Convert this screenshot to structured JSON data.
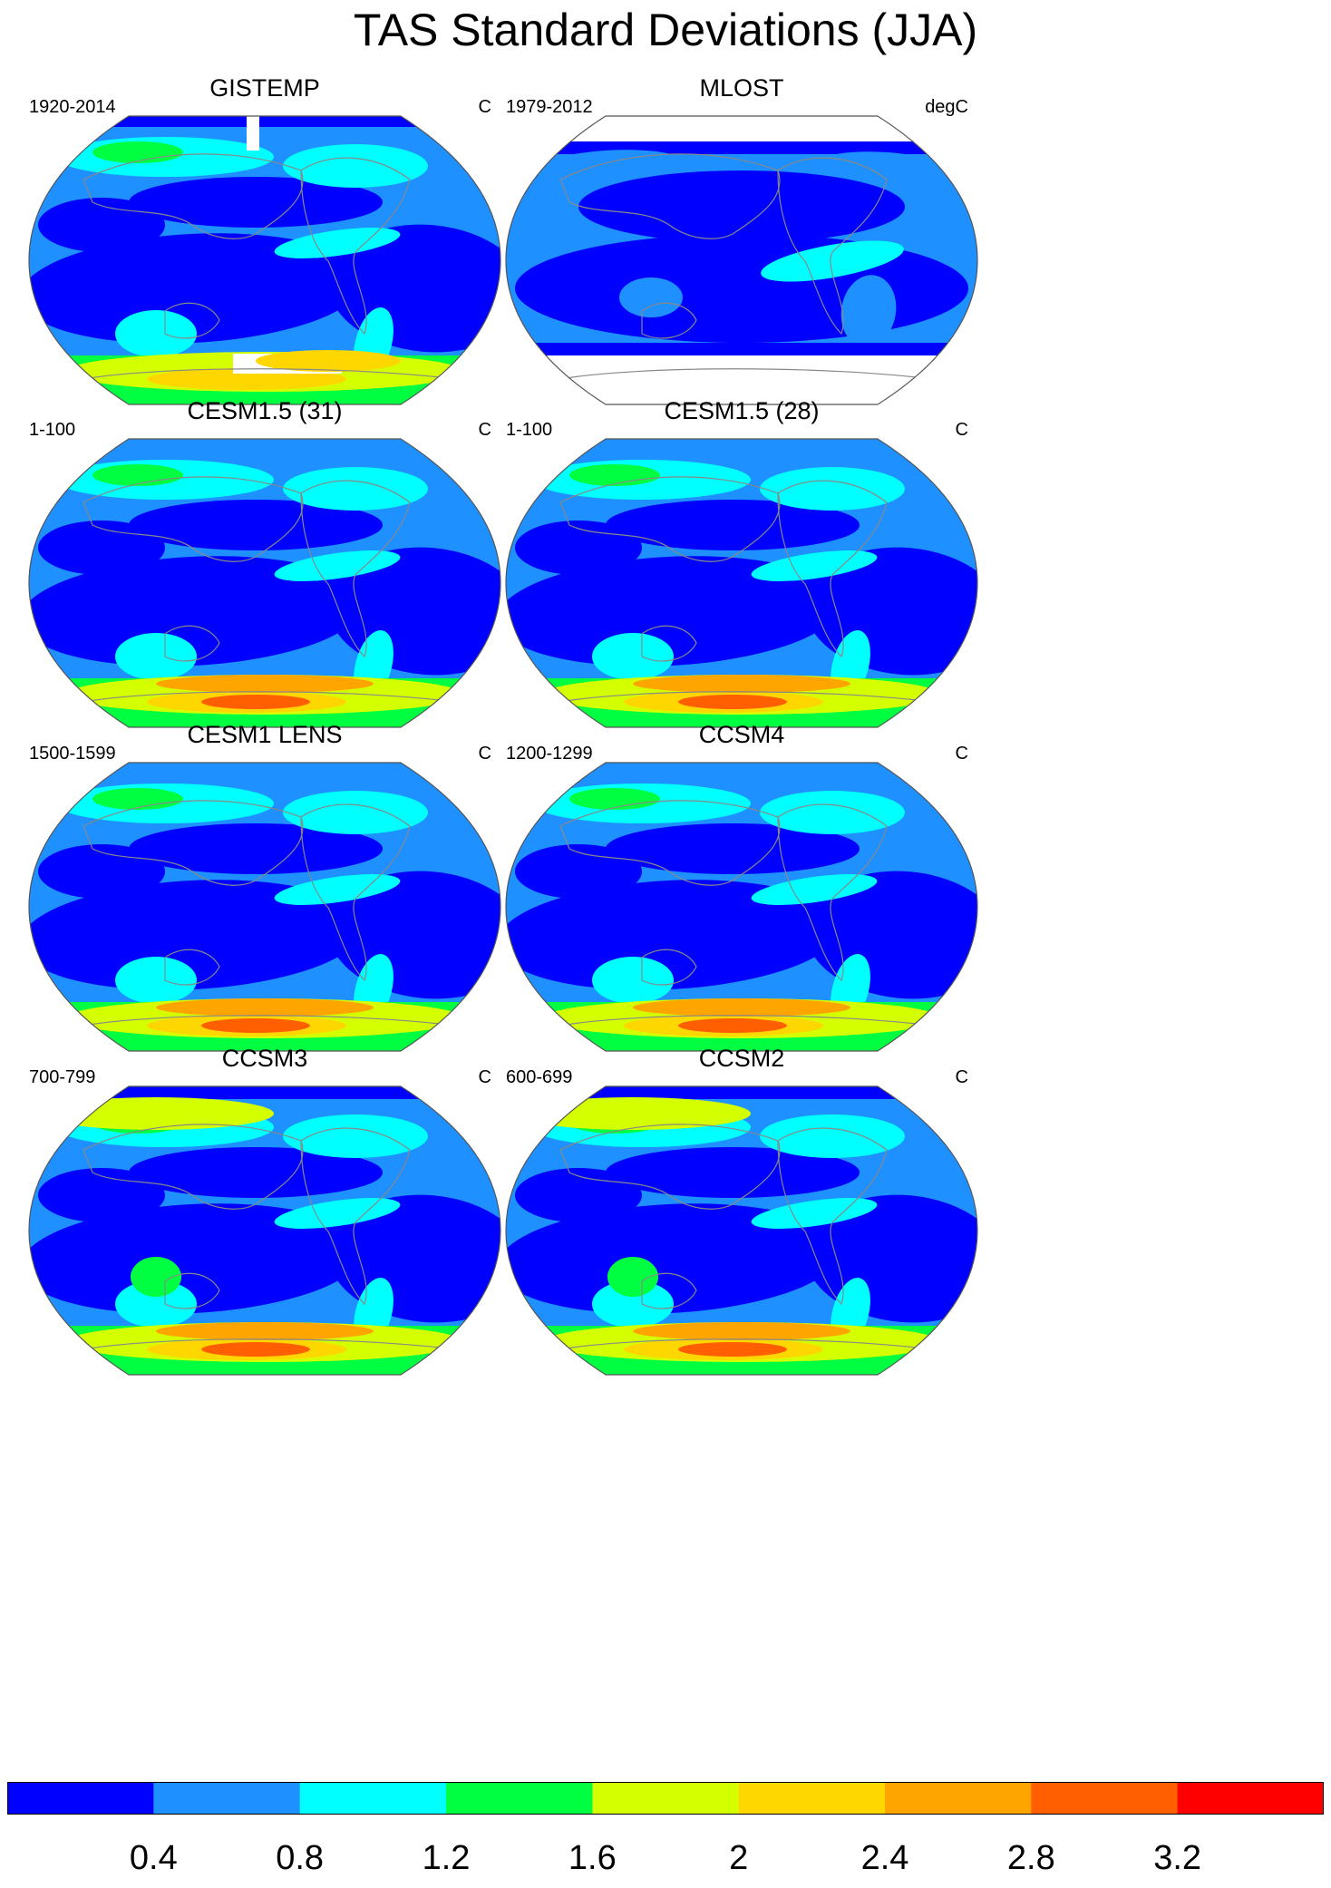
{
  "figure": {
    "title": "TAS Standard Deviations (JJA)"
  },
  "panels": [
    {
      "title": "GISTEMP",
      "left_label": "1920-2014",
      "right_label": "C",
      "variant": "gistemp"
    },
    {
      "title": "MLOST",
      "left_label": "1979-2012",
      "right_label": "degC",
      "variant": "mlost"
    },
    {
      "title": "CESM1.5 (31)",
      "left_label": "1-100",
      "right_label": "C",
      "variant": "model"
    },
    {
      "title": "CESM1.5 (28)",
      "left_label": "1-100",
      "right_label": "C",
      "variant": "model"
    },
    {
      "title": "CESM1 LENS",
      "left_label": "1500-1599",
      "right_label": "C",
      "variant": "model"
    },
    {
      "title": "CCSM4",
      "left_label": "1200-1299",
      "right_label": "C",
      "variant": "model"
    },
    {
      "title": "CCSM3",
      "left_label": "700-799",
      "right_label": "C",
      "variant": "model"
    },
    {
      "title": "CCSM2",
      "left_label": "600-699",
      "right_label": "C",
      "variant": "model"
    }
  ],
  "colorbar": {
    "colors": [
      "#0000ff",
      "#1e90ff",
      "#00ffff",
      "#00ff40",
      "#d4ff00",
      "#ffd700",
      "#ffa500",
      "#ff5f00",
      "#ff0000"
    ],
    "labels": [
      "0.4",
      "0.8",
      "1.2",
      "1.6",
      "2",
      "2.4",
      "2.8",
      "3.2"
    ]
  },
  "land_color": "#888888"
}
